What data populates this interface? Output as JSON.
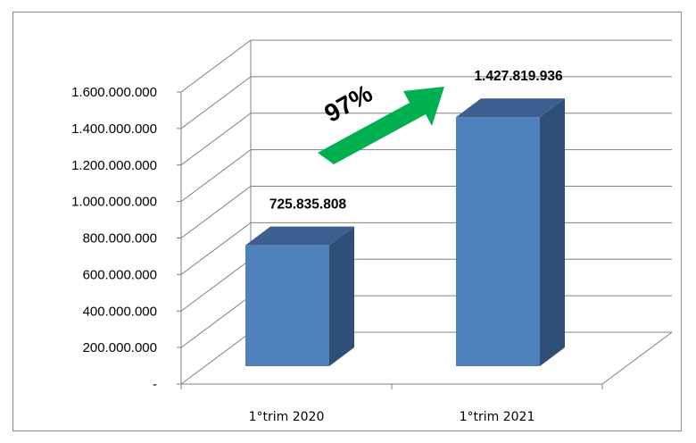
{
  "chart_data": {
    "type": "bar",
    "style": "3d-column",
    "categories": [
      "1°trim 2020",
      "1°trim 2021"
    ],
    "series": [
      {
        "values": [
          725835808,
          1427819936
        ]
      }
    ],
    "data_labels": [
      "725.835.808",
      "1.427.819.936"
    ],
    "y_ticks": [
      "-",
      "200.000.000",
      "400.000.000",
      "600.000.000",
      "800.000.000",
      "1.000.000.000",
      "1.200.000.000",
      "1.400.000.000",
      "1.600.000.000"
    ],
    "ylim": [
      0,
      1600000000
    ],
    "grid": true,
    "legend": "none",
    "annotation": {
      "text": "97%",
      "icon": "green-up-arrow-icon"
    },
    "colors": {
      "bar_front": "#4f81bd",
      "bar_side": "#2e4f78",
      "bar_top": "#3b5f8f",
      "arrow": "#00b050",
      "gridline": "#808080"
    }
  }
}
